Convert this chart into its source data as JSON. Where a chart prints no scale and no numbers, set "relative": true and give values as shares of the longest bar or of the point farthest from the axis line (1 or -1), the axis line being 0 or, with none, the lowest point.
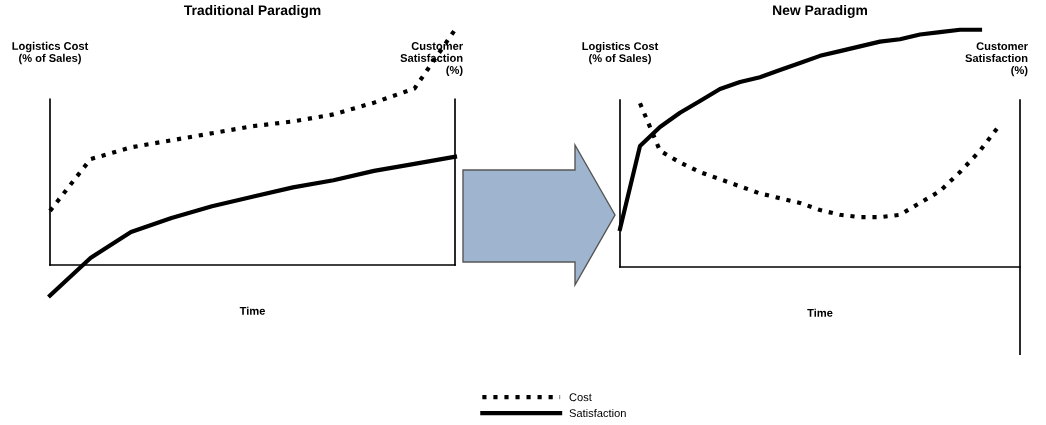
{
  "chart_data": [
    {
      "type": "line",
      "title": "Traditional Paradigm",
      "ylabel": "Logistics Cost\n(% of Sales)",
      "y2label": "Customer\nSatisfaction\n(%)",
      "xlabel": "Time",
      "relative": true,
      "tick_labels": false,
      "grid": false,
      "legend": "bottom",
      "categories": [
        null,
        null,
        null,
        null,
        null,
        null,
        null,
        null,
        null,
        null,
        null
      ],
      "series": [
        {
          "name": "Cost",
          "color": "#000000",
          "line_style": "dotted",
          "values": [
            0.23,
            0.45,
            0.5,
            0.53,
            0.56,
            0.59,
            0.61,
            0.64,
            0.69,
            0.75,
            1
          ]
        },
        {
          "name": "Satisfaction",
          "color": "#000000",
          "line_style": "solid",
          "values": [
            -0.13,
            0.03,
            0.14,
            0.2,
            0.25,
            0.29,
            0.33,
            0.36,
            0.4,
            0.43,
            0.46
          ]
        }
      ]
    },
    {
      "type": "line",
      "title": "New Paradigm",
      "ylabel": "Logistics Cost\n(% of Sales)",
      "y2label": "Customer\nSatisfaction\n(%)",
      "xlabel": "Time",
      "relative": true,
      "tick_labels": false,
      "grid": false,
      "categories": [
        null,
        null,
        null,
        null,
        null,
        null,
        null,
        null,
        null,
        null,
        null,
        null,
        null,
        null,
        null,
        null,
        null,
        null,
        null,
        null,
        null
      ],
      "series": [
        {
          "color": "#000000",
          "line_style": "dotted",
          "values": [
            null,
            0.69,
            0.49,
            0.44,
            0.4,
            0.37,
            0.34,
            0.31,
            0.29,
            0.27,
            0.24,
            0.22,
            0.21,
            0.21,
            0.22,
            0.27,
            0.32,
            0.4,
            0.49,
            0.6,
            null
          ]
        },
        {
          "color": "#000000",
          "line_style": "solid",
          "values": [
            0.16,
            0.51,
            0.59,
            0.65,
            0.7,
            0.75,
            0.78,
            0.8,
            0.83,
            0.86,
            0.89,
            0.91,
            0.93,
            0.95,
            0.96,
            0.98,
            0.99,
            1,
            1,
            null,
            null
          ]
        }
      ]
    }
  ]
}
